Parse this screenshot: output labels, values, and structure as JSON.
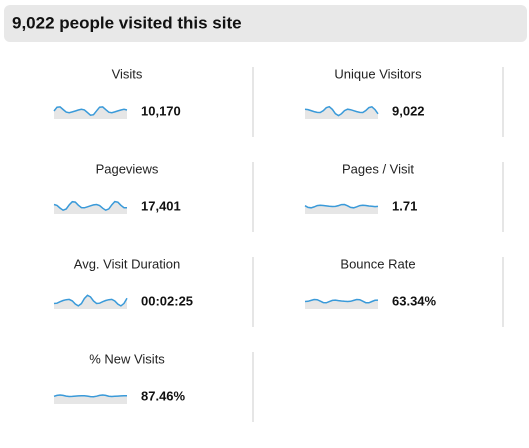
{
  "header": {
    "title": "9,022 people visited this site"
  },
  "metrics": [
    {
      "label": "Visits",
      "value": "10,170"
    },
    {
      "label": "Unique Visitors",
      "value": "9,022"
    },
    {
      "label": "Pageviews",
      "value": "17,401"
    },
    {
      "label": "Pages / Visit",
      "value": "1.71"
    },
    {
      "label": "Avg. Visit Duration",
      "value": "00:02:25"
    },
    {
      "label": "Bounce Rate",
      "value": "63.34%"
    },
    {
      "label": "% New Visits",
      "value": "87.46%"
    }
  ]
}
